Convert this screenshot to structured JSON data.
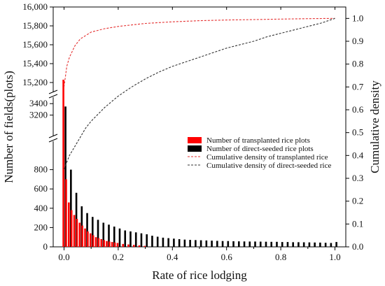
{
  "chart_data": {
    "type": "bar",
    "xlabel": "Rate of rice lodging",
    "ylabel": "Number of fields(plots)",
    "y2label": "Cumulative density",
    "xlim": [
      -0.04,
      1.04
    ],
    "x_ticks": [
      "0.0",
      "0.2",
      "0.4",
      "0.6",
      "0.8",
      "1.0"
    ],
    "y_axis_segments": [
      {
        "range": [
          0,
          1000
        ],
        "ticks": [
          "0",
          "200",
          "400",
          "600",
          "800"
        ]
      },
      {
        "range": [
          3000,
          3500
        ],
        "ticks": [
          "3200",
          "3400"
        ]
      },
      {
        "range": [
          15000,
          16000
        ],
        "ticks": [
          "15,200",
          "15,400",
          "15,600",
          "15,800",
          "16,000"
        ]
      }
    ],
    "y2_lim": [
      0,
      1.05
    ],
    "y2_ticks": [
      "0.0",
      "0.1",
      "0.2",
      "0.3",
      "0.4",
      "0.5",
      "0.6",
      "0.7",
      "0.8",
      "0.9",
      "1.0"
    ],
    "legend": {
      "position": "center-right",
      "items": [
        "Number of transplanted rice plots",
        "Number of direct-seeded rice plots",
        "Cumulative density of transplanted rice",
        "Cumulative density of direct-seeded rice"
      ]
    },
    "series": [
      {
        "name": "Number of transplanted rice plots",
        "color": "#ff0000",
        "x": [
          0.0,
          0.01,
          0.02,
          0.03,
          0.04,
          0.05,
          0.06,
          0.07,
          0.08,
          0.09,
          0.1,
          0.11,
          0.12,
          0.13,
          0.14,
          0.15,
          0.16,
          0.17,
          0.18,
          0.19,
          0.2,
          0.22,
          0.24,
          0.26,
          0.28,
          0.3
        ],
        "values": [
          15230,
          700,
          460,
          380,
          330,
          290,
          250,
          220,
          190,
          160,
          140,
          120,
          100,
          90,
          80,
          70,
          60,
          55,
          50,
          45,
          40,
          30,
          25,
          20,
          15,
          10
        ]
      },
      {
        "name": "Number of direct-seeded rice plots",
        "color": "#000000",
        "x": [
          0.0,
          0.02,
          0.04,
          0.06,
          0.08,
          0.1,
          0.12,
          0.14,
          0.16,
          0.18,
          0.2,
          0.22,
          0.24,
          0.26,
          0.28,
          0.3,
          0.32,
          0.34,
          0.36,
          0.38,
          0.4,
          0.42,
          0.44,
          0.46,
          0.48,
          0.5,
          0.52,
          0.54,
          0.56,
          0.58,
          0.6,
          0.62,
          0.64,
          0.66,
          0.68,
          0.7,
          0.72,
          0.74,
          0.76,
          0.78,
          0.8,
          0.82,
          0.84,
          0.86,
          0.88,
          0.9,
          0.92,
          0.94,
          0.96,
          0.98,
          1.0
        ],
        "values": [
          3350,
          800,
          560,
          420,
          350,
          310,
          280,
          250,
          230,
          210,
          190,
          170,
          160,
          150,
          140,
          130,
          115,
          105,
          95,
          90,
          85,
          80,
          75,
          72,
          70,
          68,
          66,
          64,
          62,
          60,
          60,
          58,
          57,
          56,
          55,
          55,
          54,
          53,
          52,
          52,
          50,
          50,
          48,
          48,
          47,
          46,
          45,
          44,
          42,
          40,
          50
        ]
      },
      {
        "name": "Cumulative density of transplanted rice",
        "color": "#e53030",
        "x": [
          0.0,
          0.01,
          0.02,
          0.04,
          0.06,
          0.08,
          0.1,
          0.15,
          0.2,
          0.3,
          0.4,
          0.5,
          0.6,
          0.7,
          0.8,
          0.9,
          1.0
        ],
        "values": [
          0.7,
          0.79,
          0.83,
          0.88,
          0.91,
          0.925,
          0.94,
          0.955,
          0.965,
          0.978,
          0.985,
          0.99,
          0.993,
          0.995,
          0.997,
          0.999,
          1.0
        ]
      },
      {
        "name": "Cumulative density of direct-seeded rice",
        "color": "#333333",
        "x": [
          0.0,
          0.02,
          0.04,
          0.06,
          0.08,
          0.1,
          0.15,
          0.2,
          0.25,
          0.3,
          0.35,
          0.4,
          0.45,
          0.5,
          0.55,
          0.6,
          0.65,
          0.7,
          0.75,
          0.8,
          0.85,
          0.9,
          0.95,
          1.0
        ],
        "values": [
          0.34,
          0.4,
          0.44,
          0.48,
          0.52,
          0.55,
          0.61,
          0.66,
          0.7,
          0.735,
          0.765,
          0.79,
          0.81,
          0.83,
          0.85,
          0.87,
          0.885,
          0.9,
          0.92,
          0.935,
          0.95,
          0.965,
          0.98,
          1.0
        ]
      }
    ]
  }
}
